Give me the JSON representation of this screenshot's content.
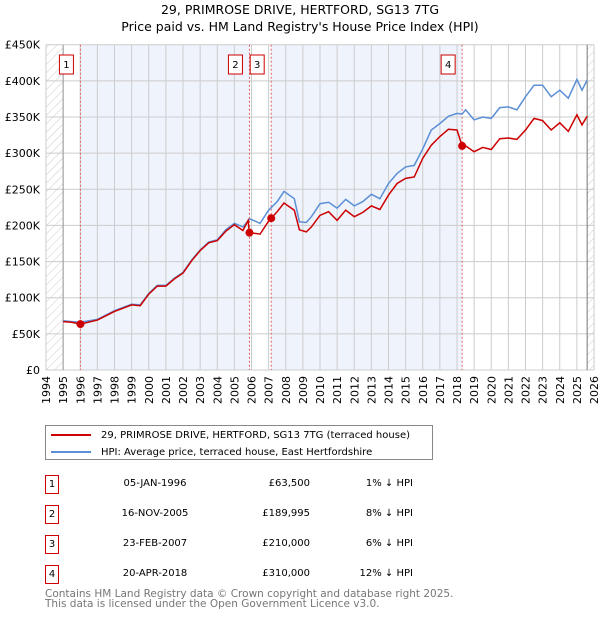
{
  "chart_data": {
    "type": "line",
    "title": "29, PRIMROSE DRIVE, HERTFORD, SG13 7TG",
    "subtitle": "Price paid vs. HM Land Registry's House Price Index (HPI)",
    "xlim": [
      1994,
      2026
    ],
    "ylim": [
      0,
      450000
    ],
    "x_ticks": [
      "1994",
      "1995",
      "1996",
      "1997",
      "1998",
      "1999",
      "2000",
      "2001",
      "2002",
      "2003",
      "2004",
      "2005",
      "2006",
      "2007",
      "2008",
      "2009",
      "2010",
      "2011",
      "2012",
      "2013",
      "2014",
      "2015",
      "2016",
      "2017",
      "2018",
      "2019",
      "2020",
      "2021",
      "2022",
      "2023",
      "2024",
      "2025",
      "2026"
    ],
    "y_ticks": [
      {
        "v": 0,
        "label": "£0"
      },
      {
        "v": 50000,
        "label": "£50K"
      },
      {
        "v": 100000,
        "label": "£100K"
      },
      {
        "v": 150000,
        "label": "£150K"
      },
      {
        "v": 200000,
        "label": "£200K"
      },
      {
        "v": 250000,
        "label": "£250K"
      },
      {
        "v": 300000,
        "label": "£300K"
      },
      {
        "v": 350000,
        "label": "£350K"
      },
      {
        "v": 400000,
        "label": "£400K"
      },
      {
        "v": 450000,
        "label": "£450K"
      }
    ],
    "grid": true,
    "colors": {
      "property": "#cc0000",
      "hpi": "#5b8fd6",
      "shade": "#eef3fc"
    },
    "series": [
      {
        "name": "29, PRIMROSE DRIVE, HERTFORD, SG13 7TG (terraced house)",
        "key": "property",
        "x": [
          1995,
          1995.5,
          1996,
          1997,
          1998,
          1999,
          1999.5,
          2000,
          2000.5,
          2001,
          2001.5,
          2002,
          2002.5,
          2003,
          2003.5,
          2004,
          2004.5,
          2005,
          2005.5,
          2005.8,
          2005.88,
          2006.5,
          2007,
          2007.15,
          2007.5,
          2007.9,
          2008.5,
          2008.8,
          2009.2,
          2009.5,
          2010,
          2010.5,
          2011,
          2011.5,
          2012,
          2012.5,
          2013,
          2013.5,
          2014,
          2014.5,
          2015,
          2015.5,
          2016,
          2016.5,
          2017,
          2017.5,
          2018,
          2018.3,
          2018.5,
          2019,
          2019.5,
          2020,
          2020.5,
          2021,
          2021.5,
          2022,
          2022.5,
          2023,
          2023.5,
          2024,
          2024.5,
          2025,
          2025.3,
          2025.6
        ],
        "y": [
          67000,
          66000,
          63500,
          69000,
          81000,
          90000,
          89000,
          105000,
          116000,
          116000,
          126000,
          134000,
          151000,
          165000,
          176000,
          179000,
          192000,
          201000,
          193000,
          207000,
          189995,
          188000,
          206000,
          210000,
          219000,
          231000,
          221000,
          194000,
          191000,
          198000,
          214000,
          219000,
          207000,
          221000,
          212000,
          218000,
          227000,
          222000,
          242000,
          258000,
          265000,
          267000,
          293000,
          311000,
          323000,
          333000,
          332000,
          310000,
          310000,
          302000,
          308000,
          305000,
          320000,
          321000,
          319000,
          332000,
          348000,
          345000,
          332000,
          342000,
          330000,
          353000,
          339000,
          351000
        ]
      },
      {
        "name": "HPI: Average price, terraced house, East Hertfordshire",
        "key": "hpi",
        "x": [
          1995,
          1995.5,
          1996,
          1997,
          1998,
          1999,
          1999.5,
          2000,
          2000.5,
          2001,
          2001.5,
          2002,
          2002.5,
          2003,
          2003.5,
          2004,
          2004.5,
          2005,
          2005.5,
          2005.9,
          2006.5,
          2007,
          2007.5,
          2007.9,
          2008.5,
          2008.8,
          2009.2,
          2009.5,
          2010,
          2010.5,
          2011,
          2011.5,
          2012,
          2012.5,
          2013,
          2013.5,
          2014,
          2014.5,
          2015,
          2015.5,
          2016,
          2016.5,
          2017,
          2017.5,
          2018,
          2018.3,
          2018.5,
          2019,
          2019.5,
          2020,
          2020.5,
          2021,
          2021.5,
          2022,
          2022.5,
          2023,
          2023.5,
          2024,
          2024.5,
          2025,
          2025.3,
          2025.6
        ],
        "y": [
          68000,
          67000,
          66000,
          70000,
          82000,
          91000,
          90000,
          106000,
          117000,
          117000,
          127000,
          135000,
          152000,
          166000,
          177000,
          180000,
          194000,
          203000,
          198000,
          209000,
          203000,
          221000,
          233000,
          247000,
          237000,
          205000,
          204000,
          212000,
          230000,
          232000,
          224000,
          236000,
          227000,
          233000,
          243000,
          237000,
          258000,
          272000,
          281000,
          283000,
          306000,
          332000,
          341000,
          351000,
          355000,
          354000,
          360000,
          346000,
          350000,
          348000,
          363000,
          364000,
          360000,
          378000,
          394000,
          394000,
          378000,
          387000,
          376000,
          402000,
          387000,
          401000
        ]
      }
    ],
    "sales": [
      {
        "n": "1",
        "x": 1996.01,
        "y": 63500
      },
      {
        "n": "2",
        "x": 2005.88,
        "y": 189995
      },
      {
        "n": "3",
        "x": 2007.15,
        "y": 210000
      },
      {
        "n": "4",
        "x": 2018.3,
        "y": 310000
      }
    ]
  },
  "legend": {
    "property": "29, PRIMROSE DRIVE, HERTFORD, SG13 7TG (terraced house)",
    "hpi": "HPI: Average price, terraced house, East Hertfordshire"
  },
  "transactions": [
    {
      "n": "1",
      "date": "05-JAN-1996",
      "price": "£63,500",
      "hpi": "1% ↓ HPI"
    },
    {
      "n": "2",
      "date": "16-NOV-2005",
      "price": "£189,995",
      "hpi": "8% ↓ HPI"
    },
    {
      "n": "3",
      "date": "23-FEB-2007",
      "price": "£210,000",
      "hpi": "6% ↓ HPI"
    },
    {
      "n": "4",
      "date": "20-APR-2018",
      "price": "£310,000",
      "hpi": "12% ↓ HPI"
    }
  ],
  "footer": {
    "line1": "Contains HM Land Registry data © Crown copyright and database right 2025.",
    "line2": "This data is licensed under the Open Government Licence v3.0."
  }
}
